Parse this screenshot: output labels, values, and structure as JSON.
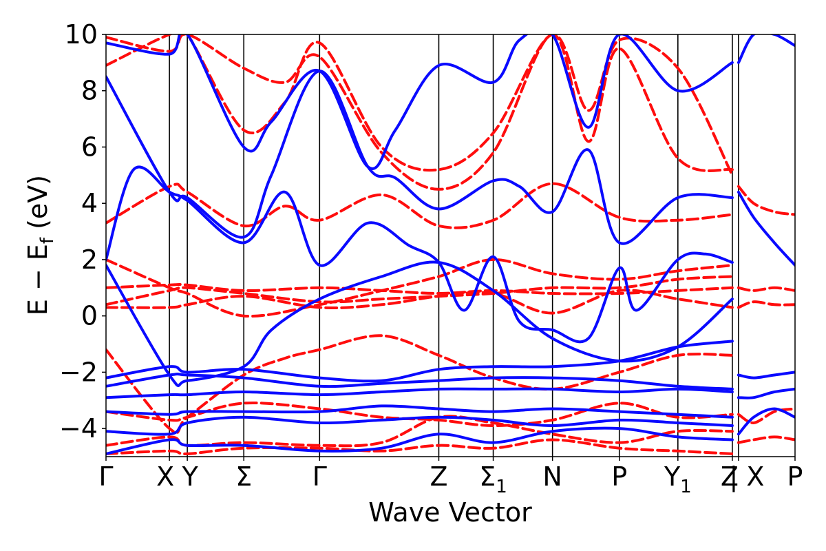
{
  "chart_data": {
    "type": "line",
    "title": "",
    "xlabel": "Wave Vector",
    "ylabel": "E − E_f (eV)",
    "ylabel_main": "E − E",
    "ylabel_sub": "f",
    "ylabel_unit": " (eV)",
    "ylim": [
      -5,
      10
    ],
    "yticks": [
      -4,
      -2,
      0,
      2,
      4,
      6,
      8,
      10
    ],
    "ytick_labels": [
      "−4",
      "−2",
      "0",
      "2",
      "4",
      "6",
      "8",
      "10"
    ],
    "xlim": [
      0,
      100
    ],
    "grid": false,
    "colors": {
      "series_a": "#0a0aff",
      "series_b": "#ff0d0d"
    },
    "kpoints": [
      {
        "label": "Γ",
        "sub": "",
        "x": 0
      },
      {
        "label": "X",
        "sub": "",
        "x": 9.2
      },
      {
        "label": "Y",
        "sub": "",
        "x": 11.8
      },
      {
        "label": "Σ",
        "sub": "",
        "x": 20.0
      },
      {
        "label": "Γ",
        "sub": "",
        "x": 31.0
      },
      {
        "label": "Z",
        "sub": "",
        "x": 48.3
      },
      {
        "label": "Σ",
        "sub": "1",
        "x": 56.2
      },
      {
        "label": "N",
        "sub": "",
        "x": 64.8
      },
      {
        "label": "P",
        "sub": "",
        "x": 74.5
      },
      {
        "label": "Y",
        "sub": "1",
        "x": 83.0
      },
      {
        "label": "Z",
        "sub": "",
        "x": 90.9
      },
      {
        "label": "| X",
        "sub": "",
        "x": 91.8
      },
      {
        "label": "P",
        "sub": "",
        "x": 100
      }
    ],
    "series": [
      {
        "style": "solid",
        "color": "#0a0aff",
        "bands": [
          {
            "x": [
              0,
              9.2,
              11.8,
              20,
              31,
              40,
              48.3,
              56.2,
              64.8,
              74.5,
              83,
              90.9
            ],
            "y": [
              -2.2,
              -1.8,
              -2.0,
              -1.9,
              -2.2,
              -2.3,
              -1.9,
              -1.8,
              -1.8,
              -1.6,
              -1.1,
              -0.9
            ]
          },
          {
            "x": [
              0,
              9.2,
              11.8,
              20,
              31,
              40,
              48.3,
              56.2,
              64.8,
              74.5,
              83,
              90.9
            ],
            "y": [
              -2.5,
              -2.1,
              -2.1,
              -2.2,
              -2.5,
              -2.4,
              -2.3,
              -2.2,
              -2.2,
              -2.3,
              -2.5,
              -2.6
            ]
          },
          {
            "x": [
              0,
              9.2,
              11.8,
              20,
              31,
              40,
              48.3,
              56.2,
              64.8,
              74.5,
              83,
              90.9
            ],
            "y": [
              -2.9,
              -2.8,
              -2.8,
              -2.7,
              -2.8,
              -2.7,
              -2.6,
              -2.6,
              -2.6,
              -2.7,
              -2.6,
              -2.7
            ]
          },
          {
            "x": [
              0,
              9.2,
              11.8,
              20,
              31,
              40,
              48.3,
              56.2,
              64.8,
              74.5,
              83,
              90.9
            ],
            "y": [
              -3.4,
              -3.5,
              -3.4,
              -3.4,
              -3.4,
              -3.2,
              -3.3,
              -3.4,
              -3.3,
              -3.4,
              -3.5,
              -3.6
            ]
          },
          {
            "x": [
              0,
              9.2,
              11.8,
              20,
              31,
              40,
              48.3,
              56.2,
              64.8,
              74.5,
              83,
              90.9
            ],
            "y": [
              -4.1,
              -4.2,
              -3.8,
              -3.6,
              -3.8,
              -3.7,
              -3.6,
              -3.7,
              -3.9,
              -3.7,
              -3.8,
              -3.9
            ]
          },
          {
            "x": [
              0,
              9.2,
              11.8,
              20,
              31,
              40,
              48.3,
              56.2,
              64.8,
              74.5,
              83,
              90.9
            ],
            "y": [
              -4.9,
              -4.4,
              -4.6,
              -4.6,
              -4.8,
              -4.7,
              -4.2,
              -4.5,
              -4.1,
              -4.0,
              -4.3,
              -4.4
            ]
          },
          {
            "x": [
              0,
              9.2,
              11.8,
              20,
              24,
              31,
              40,
              48.3,
              56.2,
              64.8,
              74.5,
              83,
              90.9
            ],
            "y": [
              1.8,
              -2.1,
              -2.3,
              -1.8,
              -0.5,
              0.6,
              1.4,
              1.9,
              0.9,
              -0.8,
              -1.6,
              -1.1,
              0.6
            ]
          },
          {
            "x": [
              0,
              4,
              9.2,
              11.8,
              20,
              26,
              31,
              38,
              44,
              48.3,
              52,
              56.2,
              60,
              64.8,
              70,
              74.5,
              77,
              83,
              87,
              90.9
            ],
            "y": [
              2.0,
              5.2,
              4.4,
              4.1,
              2.6,
              4.4,
              1.8,
              3.3,
              2.5,
              1.9,
              0.2,
              2.1,
              -0.2,
              -0.5,
              -0.8,
              1.7,
              0.2,
              2.0,
              2.2,
              1.9
            ]
          },
          {
            "x": [
              0,
              9.2,
              11.8,
              20,
              24,
              31,
              38,
              42,
              48.3,
              56.2,
              60,
              64.8,
              70,
              74.5,
              83,
              90.9
            ],
            "y": [
              8.5,
              4.4,
              4.2,
              2.8,
              5.0,
              8.7,
              5.3,
              4.9,
              3.8,
              4.8,
              4.6,
              3.7,
              5.9,
              2.6,
              4.2,
              4.2
            ]
          },
          {
            "x": [
              0,
              9.2,
              11.8,
              20,
              24,
              31,
              38,
              42,
              48.3,
              56.2,
              60,
              64.8,
              70,
              74.5,
              83,
              90.9
            ],
            "y": [
              9.7,
              9.3,
              10.0,
              6.0,
              6.9,
              8.7,
              5.3,
              6.6,
              8.9,
              8.3,
              9.8,
              10.0,
              6.7,
              10.0,
              8.0,
              9.0
            ]
          },
          {
            "x": [
              91.8,
              94,
              97,
              100
            ],
            "y": [
              -2.1,
              -2.2,
              -2.1,
              -2.0
            ]
          },
          {
            "x": [
              91.8,
              94,
              97,
              100
            ],
            "y": [
              -2.9,
              -2.9,
              -2.7,
              -2.6
            ]
          },
          {
            "x": [
              91.8,
              94,
              97,
              100
            ],
            "y": [
              -4.2,
              -3.6,
              -3.3,
              -3.6
            ]
          },
          {
            "x": [
              91.8,
              94,
              97,
              100
            ],
            "y": [
              4.4,
              3.5,
              2.6,
              1.8
            ]
          },
          {
            "x": [
              91.8,
              94,
              97,
              100
            ],
            "y": [
              9.0,
              10.0,
              10.0,
              9.6
            ]
          }
        ]
      },
      {
        "style": "dashed",
        "color": "#ff0d0d",
        "bands": [
          {
            "x": [
              0,
              9.2,
              11.8,
              20,
              31,
              40,
              48.3,
              56.2,
              64.8,
              74.5,
              83,
              90.9
            ],
            "y": [
              1.0,
              1.1,
              1.1,
              0.9,
              1.0,
              0.9,
              0.8,
              0.9,
              0.8,
              0.8,
              0.9,
              1.0
            ]
          },
          {
            "x": [
              0,
              9.2,
              11.8,
              20,
              31,
              40,
              48.3,
              56.2,
              64.8,
              74.5,
              83,
              90.9
            ],
            "y": [
              0.4,
              0.9,
              1.0,
              0.8,
              0.5,
              0.6,
              0.7,
              0.8,
              1.0,
              1.0,
              1.3,
              1.4
            ]
          },
          {
            "x": [
              0,
              9.2,
              11.8,
              20,
              31,
              40,
              48.3,
              56.2,
              64.8,
              74.5,
              83,
              90.9
            ],
            "y": [
              0.3,
              0.3,
              0.4,
              0.7,
              0.3,
              0.4,
              0.7,
              0.8,
              0.1,
              0.9,
              0.6,
              0.3
            ]
          },
          {
            "x": [
              0,
              9.2,
              11.8,
              20,
              31,
              40,
              48.3,
              56.2,
              64.8,
              74.5,
              83,
              90.9
            ],
            "y": [
              2.0,
              1.0,
              0.8,
              0.0,
              0.4,
              0.9,
              1.4,
              2.0,
              1.5,
              1.3,
              1.6,
              1.8
            ]
          },
          {
            "x": [
              0,
              9.2,
              11.8,
              20,
              26,
              31,
              40,
              48.3,
              56.2,
              64.8,
              74.5,
              83,
              90.9
            ],
            "y": [
              -1.2,
              -4.0,
              -3.6,
              -2.1,
              -1.5,
              -1.2,
              -0.7,
              -1.4,
              -2.2,
              -2.6,
              -2.0,
              -1.4,
              -1.4
            ]
          },
          {
            "x": [
              0,
              9.2,
              11.8,
              20,
              31,
              40,
              48.3,
              56.2,
              64.8,
              74.5,
              83,
              90.9
            ],
            "y": [
              -3.4,
              -3.7,
              -3.6,
              -3.1,
              -3.3,
              -3.6,
              -3.7,
              -3.9,
              -3.7,
              -3.1,
              -3.6,
              -3.5
            ]
          },
          {
            "x": [
              0,
              9.2,
              11.8,
              20,
              31,
              40,
              48.3,
              56.2,
              64.8,
              74.5,
              83,
              90.9
            ],
            "y": [
              -4.6,
              -4.3,
              -4.6,
              -4.5,
              -4.6,
              -4.5,
              -3.6,
              -3.8,
              -4.2,
              -4.5,
              -4.1,
              -4.1
            ]
          },
          {
            "x": [
              0,
              9.2,
              11.8,
              20,
              31,
              40,
              48.3,
              56.2,
              64.8,
              74.5,
              83,
              90.9
            ],
            "y": [
              -4.9,
              -4.8,
              -4.9,
              -4.7,
              -4.7,
              -4.8,
              -4.6,
              -4.7,
              -4.4,
              -4.7,
              -4.8,
              -4.9
            ]
          },
          {
            "x": [
              0,
              9.2,
              11.8,
              20,
              26,
              31,
              40,
              48.3,
              56.2,
              64.8,
              74.5,
              83,
              90.9
            ],
            "y": [
              3.3,
              4.6,
              4.4,
              3.2,
              3.9,
              3.4,
              4.3,
              3.2,
              3.4,
              4.7,
              3.5,
              3.4,
              3.6
            ]
          },
          {
            "x": [
              0,
              9.2,
              11.8,
              20,
              26,
              31,
              40,
              48.3,
              56.2,
              64.8,
              70,
              74.5,
              83,
              90.9
            ],
            "y": [
              8.9,
              10.0,
              10.0,
              6.6,
              7.6,
              9.7,
              6.0,
              5.2,
              6.5,
              10.0,
              7.3,
              9.8,
              8.8,
              5.0
            ]
          },
          {
            "x": [
              0,
              9.2,
              11.8,
              20,
              26,
              31,
              40,
              48.3,
              56.2,
              64.8,
              70,
              74.5,
              83,
              90.9
            ],
            "y": [
              9.9,
              9.4,
              10.0,
              8.8,
              8.3,
              9.2,
              5.8,
              4.5,
              5.8,
              10.0,
              6.2,
              9.5,
              5.6,
              5.2
            ]
          },
          {
            "x": [
              91.8,
              94,
              97,
              100
            ],
            "y": [
              1.0,
              0.9,
              1.0,
              0.9
            ]
          },
          {
            "x": [
              91.8,
              94,
              97,
              100
            ],
            "y": [
              0.3,
              0.5,
              0.4,
              0.4
            ]
          },
          {
            "x": [
              91.8,
              94,
              97,
              100
            ],
            "y": [
              -3.5,
              -3.8,
              -3.4,
              -3.3
            ]
          },
          {
            "x": [
              91.8,
              94,
              97,
              100
            ],
            "y": [
              -4.5,
              -4.4,
              -4.3,
              -4.4
            ]
          },
          {
            "x": [
              91.8,
              94,
              97,
              100
            ],
            "y": [
              4.6,
              4.0,
              3.7,
              3.6
            ]
          }
        ]
      }
    ]
  }
}
